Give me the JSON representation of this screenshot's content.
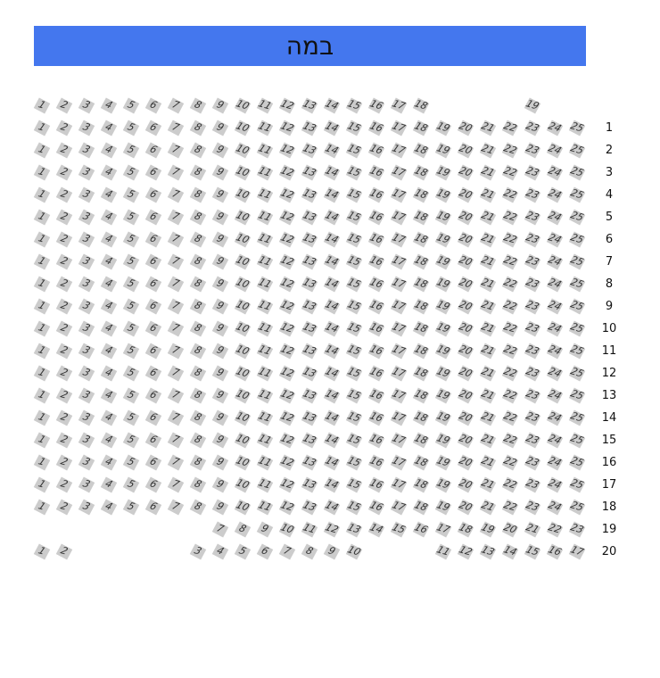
{
  "stage": {
    "label": "במה",
    "color": "#4477ee"
  },
  "seat_color": "#cccccc",
  "rows": [
    {
      "label": "",
      "seats": [
        1,
        2,
        3,
        4,
        5,
        6,
        7,
        8,
        9,
        10,
        11,
        12,
        13,
        14,
        15,
        16,
        17,
        18,
        null,
        null,
        null,
        null,
        19,
        null,
        null
      ]
    },
    {
      "label": "1",
      "seats": "1-25"
    },
    {
      "label": "2",
      "seats": "1-25"
    },
    {
      "label": "3",
      "seats": "1-25"
    },
    {
      "label": "4",
      "seats": "1-25"
    },
    {
      "label": "5",
      "seats": "1-25"
    },
    {
      "label": "6",
      "seats": "1-25"
    },
    {
      "label": "7",
      "seats": "1-25"
    },
    {
      "label": "8",
      "seats": "1-25"
    },
    {
      "label": "9",
      "seats": "1-25"
    },
    {
      "label": "10",
      "seats": "1-25"
    },
    {
      "label": "11",
      "seats": "1-25"
    },
    {
      "label": "12",
      "seats": "1-25"
    },
    {
      "label": "13",
      "seats": "1-25"
    },
    {
      "label": "14",
      "seats": "1-25"
    },
    {
      "label": "15",
      "seats": "1-25"
    },
    {
      "label": "16",
      "seats": "1-25"
    },
    {
      "label": "17",
      "seats": "1-25"
    },
    {
      "label": "18",
      "seats": "1-25"
    },
    {
      "label": "19",
      "seats": [
        null,
        null,
        null,
        null,
        null,
        null,
        null,
        null,
        7,
        8,
        9,
        10,
        11,
        12,
        13,
        14,
        15,
        16,
        17,
        18,
        19,
        20,
        21,
        22,
        23
      ]
    },
    {
      "label": "20",
      "seats": [
        1,
        2,
        null,
        null,
        null,
        null,
        null,
        3,
        4,
        5,
        6,
        7,
        8,
        9,
        10,
        null,
        null,
        null,
        11,
        12,
        13,
        14,
        15,
        16,
        17
      ]
    }
  ]
}
